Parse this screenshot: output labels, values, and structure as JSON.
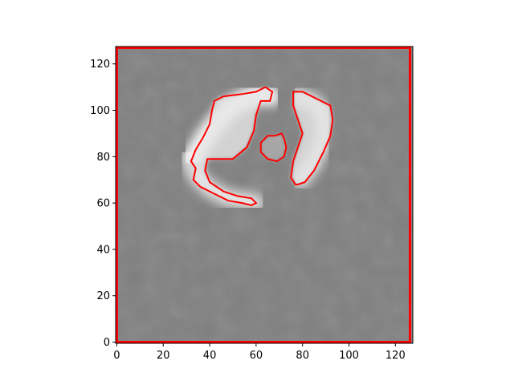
{
  "chart_data": {
    "type": "heatmap",
    "title": "",
    "xlabel": "",
    "ylabel": "",
    "xlim": [
      -0.5,
      127.5
    ],
    "ylim": [
      127.5,
      -0.5
    ],
    "y_axis_inverted": true,
    "grid": false,
    "colormap": "gray",
    "x_ticks": [
      0,
      20,
      40,
      60,
      80,
      100,
      120
    ],
    "y_ticks": [
      0,
      20,
      40,
      60,
      80,
      100,
      120
    ],
    "image_size": [
      128,
      128
    ],
    "background_value": 0.5,
    "contour_color": "#ff0000",
    "frame_contour": true,
    "bright_regions": [
      {
        "name": "left-arc",
        "centerline": [
          [
            31,
            80
          ],
          [
            34,
            72
          ],
          [
            40,
            66
          ],
          [
            48,
            62
          ],
          [
            56,
            61
          ],
          [
            60,
            60
          ]
        ],
        "lower_branch": [
          [
            33,
            80
          ],
          [
            38,
            88
          ],
          [
            44,
            96
          ],
          [
            50,
            102
          ],
          [
            56,
            105
          ],
          [
            62,
            107
          ],
          [
            66,
            106
          ]
        ],
        "inner_edge": [
          [
            36,
            80
          ],
          [
            42,
            80
          ],
          [
            48,
            80
          ],
          [
            54,
            84
          ],
          [
            58,
            92
          ],
          [
            60,
            98
          ]
        ],
        "contour": [
          [
            34,
            75
          ],
          [
            33,
            70
          ],
          [
            36,
            67
          ],
          [
            42,
            64
          ],
          [
            48,
            61
          ],
          [
            54,
            60
          ],
          [
            58,
            59
          ],
          [
            60,
            60
          ],
          [
            58,
            62
          ],
          [
            52,
            63
          ],
          [
            46,
            65
          ],
          [
            40,
            69
          ],
          [
            38,
            74
          ],
          [
            39,
            79
          ],
          [
            44,
            79
          ],
          [
            50,
            79
          ],
          [
            56,
            84
          ],
          [
            59,
            91
          ],
          [
            60,
            98
          ],
          [
            62,
            104
          ],
          [
            66,
            104
          ],
          [
            67,
            108
          ],
          [
            64,
            110
          ],
          [
            60,
            108
          ],
          [
            54,
            107
          ],
          [
            46,
            106
          ],
          [
            42,
            104
          ],
          [
            41,
            100
          ],
          [
            40,
            94
          ],
          [
            37,
            88
          ],
          [
            34,
            83
          ],
          [
            32,
            78
          ]
        ]
      },
      {
        "name": "right-arc",
        "centerline": [
          [
            79,
            70
          ],
          [
            84,
            76
          ],
          [
            88,
            84
          ],
          [
            90,
            92
          ],
          [
            88,
            100
          ],
          [
            84,
            104
          ],
          [
            78,
            106
          ]
        ],
        "contour": [
          [
            78,
            68
          ],
          [
            81,
            69
          ],
          [
            85,
            74
          ],
          [
            89,
            82
          ],
          [
            92,
            89
          ],
          [
            93,
            96
          ],
          [
            92,
            102
          ],
          [
            88,
            104
          ],
          [
            84,
            106
          ],
          [
            80,
            108
          ],
          [
            76,
            108
          ],
          [
            76,
            102
          ],
          [
            78,
            96
          ],
          [
            80,
            90
          ],
          [
            78,
            84
          ],
          [
            76,
            78
          ],
          [
            75,
            71
          ],
          [
            77,
            68
          ]
        ]
      },
      {
        "name": "center-ring",
        "contour": [
          [
            62,
            82
          ],
          [
            65,
            79
          ],
          [
            69,
            78
          ],
          [
            72,
            80
          ],
          [
            73,
            84
          ],
          [
            72,
            88
          ],
          [
            71,
            90
          ],
          [
            68,
            89
          ],
          [
            65,
            89
          ],
          [
            62,
            86
          ]
        ]
      }
    ]
  }
}
